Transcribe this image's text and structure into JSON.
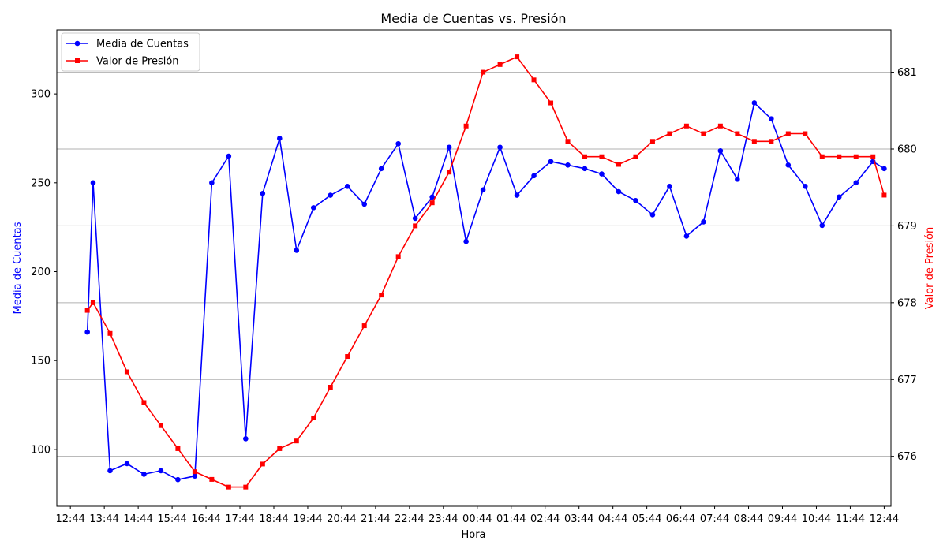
{
  "chart_data": {
    "type": "line",
    "title": "Media de Cuentas vs. Presión",
    "xlabel": "Hora",
    "ylabel_left": "Media de Cuentas",
    "ylabel_right": "Valor de Presión",
    "x_ticks": [
      "12:44",
      "13:44",
      "14:44",
      "15:44",
      "16:44",
      "17:44",
      "18:44",
      "19:44",
      "20:44",
      "21:44",
      "22:44",
      "23:44",
      "00:44",
      "01:44",
      "02:44",
      "03:44",
      "04:44",
      "05:44",
      "06:44",
      "07:44",
      "08:44",
      "09:44",
      "10:44",
      "11:44",
      "12:44"
    ],
    "x_range": [
      -0.4,
      24.2
    ],
    "y_left": {
      "range": [
        68,
        336
      ],
      "ticks": [
        100,
        150,
        200,
        250,
        300
      ]
    },
    "y_right": {
      "range": [
        675.35,
        681.55
      ],
      "ticks": [
        676,
        677,
        678,
        679,
        680,
        681
      ]
    },
    "grid": "right axis horizontal lines",
    "legend": "top-left",
    "series": [
      {
        "name": "Media de Cuentas",
        "axis": "left",
        "color": "#0000ff",
        "marker": "circle",
        "x": [
          0.5,
          0.67,
          1.17,
          1.67,
          2.17,
          2.67,
          3.17,
          3.67,
          4.17,
          4.67,
          5.17,
          5.67,
          6.17,
          6.67,
          7.17,
          7.67,
          8.17,
          8.67,
          9.17,
          9.67,
          10.17,
          10.67,
          11.17,
          11.67,
          12.17,
          12.67,
          13.17,
          13.67,
          14.17,
          14.67,
          15.17,
          15.67,
          16.17,
          16.67,
          17.17,
          17.67,
          18.17,
          18.67,
          19.17,
          19.67,
          20.17,
          20.67,
          21.17,
          21.67,
          22.17,
          22.67,
          23.17,
          23.67,
          24.0
        ],
        "y": [
          166,
          250,
          88,
          92,
          86,
          88,
          83,
          85,
          250,
          265,
          106,
          244,
          275,
          212,
          236,
          243,
          248,
          238,
          258,
          272,
          230,
          242,
          270,
          217,
          246,
          270,
          243,
          254,
          262,
          260,
          258,
          255,
          245,
          240,
          232,
          248,
          220,
          228,
          268,
          252,
          295,
          286,
          260,
          248,
          226,
          242,
          250,
          262,
          258
        ]
      },
      {
        "name": "Valor de Presión",
        "axis": "right",
        "color": "#ff0000",
        "marker": "square",
        "x": [
          0.5,
          0.67,
          1.17,
          1.67,
          2.17,
          2.67,
          3.17,
          3.67,
          4.17,
          4.67,
          5.17,
          5.67,
          6.17,
          6.67,
          7.17,
          7.67,
          8.17,
          8.67,
          9.17,
          9.67,
          10.17,
          10.67,
          11.17,
          11.67,
          12.17,
          12.67,
          13.17,
          13.67,
          14.17,
          14.67,
          15.17,
          15.67,
          16.17,
          16.67,
          17.17,
          17.67,
          18.17,
          18.67,
          19.17,
          19.67,
          20.17,
          20.67,
          21.17,
          21.67,
          22.17,
          22.67,
          23.17,
          23.67,
          24.0
        ],
        "y": [
          677.9,
          678.0,
          677.6,
          677.1,
          676.7,
          676.4,
          676.1,
          675.8,
          675.7,
          675.6,
          675.6,
          675.9,
          676.1,
          676.2,
          676.5,
          676.9,
          677.3,
          677.7,
          678.1,
          678.6,
          679.0,
          679.3,
          679.7,
          680.3,
          681.0,
          681.1,
          681.2,
          680.9,
          680.6,
          680.1,
          679.9,
          679.9,
          679.8,
          679.9,
          680.1,
          680.2,
          680.3,
          680.2,
          680.3,
          680.2,
          680.1,
          680.1,
          680.2,
          680.2,
          679.9,
          679.9,
          679.9,
          679.9,
          679.4
        ]
      }
    ]
  }
}
